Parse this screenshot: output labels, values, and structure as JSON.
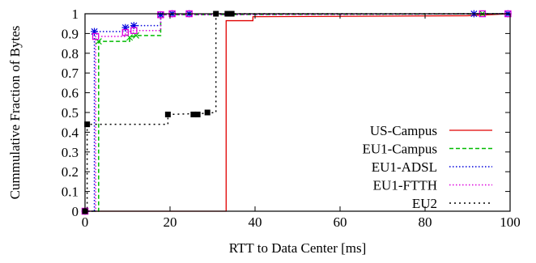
{
  "chart_data": {
    "type": "line",
    "title": "",
    "xlabel": "RTT to Data Center [ms]",
    "ylabel": "Cummulative Fraction of Bytes",
    "xlim": [
      0,
      100
    ],
    "ylim": [
      0,
      1
    ],
    "x_ticks": [
      0,
      20,
      40,
      60,
      80,
      100
    ],
    "y_ticks": [
      0,
      0.1,
      0.2,
      0.3,
      0.4,
      0.5,
      0.6,
      0.7,
      0.8,
      0.9,
      1
    ],
    "x_tick_labels": [
      "0",
      "20",
      "40",
      "60",
      "80",
      "100"
    ],
    "y_tick_labels": [
      "0",
      "0.1",
      "0.2",
      "0.3",
      "0.4",
      "0.5",
      "0.6",
      "0.7",
      "0.8",
      "0.9",
      "1"
    ],
    "grid": false,
    "legend_position": "bottom-right",
    "series": [
      {
        "name": "US-Campus",
        "color": "#e00000",
        "dash": "solid",
        "marker": "none",
        "points": [
          [
            0,
            0
          ],
          [
            33.2,
            0
          ],
          [
            33.2,
            0.965
          ],
          [
            39.5,
            0.965
          ],
          [
            39.5,
            0.985
          ],
          [
            90,
            0.99
          ],
          [
            100,
            1.0
          ]
        ]
      },
      {
        "name": "EU1-Campus",
        "color": "#00bb00",
        "dash": "dashed",
        "marker": "x",
        "points": [
          [
            0,
            0
          ],
          [
            3.2,
            0
          ],
          [
            3.2,
            0.86
          ],
          [
            10.5,
            0.86
          ],
          [
            10.5,
            0.88
          ],
          [
            12,
            0.89
          ],
          [
            17.8,
            0.89
          ],
          [
            17.8,
            0.995
          ],
          [
            100,
            1.0
          ]
        ]
      },
      {
        "name": "EU1-ADSL",
        "color": "#0000dd",
        "dash": "dotted",
        "marker": "star",
        "points": [
          [
            0,
            0
          ],
          [
            2.2,
            0
          ],
          [
            2.2,
            0.91
          ],
          [
            9.5,
            0.91
          ],
          [
            9.5,
            0.93
          ],
          [
            11.5,
            0.94
          ],
          [
            17.8,
            0.94
          ],
          [
            17.8,
            0.995
          ],
          [
            100,
            1.0
          ]
        ]
      },
      {
        "name": "EU1-FTTH",
        "color": "#dd00dd",
        "dash": "dotted",
        "marker": "square",
        "points": [
          [
            0,
            0
          ],
          [
            2.5,
            0
          ],
          [
            2.5,
            0.885
          ],
          [
            9.5,
            0.885
          ],
          [
            9.5,
            0.905
          ],
          [
            11.5,
            0.915
          ],
          [
            17.8,
            0.915
          ],
          [
            17.8,
            0.995
          ],
          [
            100,
            1.0
          ]
        ]
      },
      {
        "name": "EU2",
        "color": "#000000",
        "dash": "dashdot",
        "marker": "filled-square",
        "points": [
          [
            0,
            0
          ],
          [
            0.5,
            0
          ],
          [
            0.5,
            0.44
          ],
          [
            19.5,
            0.44
          ],
          [
            19.5,
            0.49
          ],
          [
            27.5,
            0.495
          ],
          [
            30.8,
            0.5
          ],
          [
            30.8,
            1.0
          ],
          [
            100,
            1.0
          ]
        ]
      }
    ],
    "markers": {
      "US-Campus": [],
      "EU1-Campus": [
        [
          3.2,
          0.86
        ],
        [
          10.5,
          0.88
        ],
        [
          12,
          0.89
        ],
        [
          17.8,
          0.995
        ],
        [
          20.5,
          1.0
        ],
        [
          24.5,
          1.0
        ],
        [
          93.5,
          1.0
        ],
        [
          99.5,
          1.0
        ]
      ],
      "EU1-ADSL": [
        [
          0,
          0
        ],
        [
          2.2,
          0.91
        ],
        [
          9.5,
          0.93
        ],
        [
          11.5,
          0.94
        ],
        [
          17.8,
          0.995
        ],
        [
          20.5,
          1.0
        ],
        [
          24.5,
          1.0
        ],
        [
          91.5,
          1.0
        ],
        [
          99.5,
          1.0
        ]
      ],
      "EU1-FTTH": [
        [
          0,
          0
        ],
        [
          2.5,
          0.885
        ],
        [
          9.5,
          0.905
        ],
        [
          11.5,
          0.915
        ],
        [
          17.8,
          0.995
        ],
        [
          20.5,
          1.0
        ],
        [
          24.5,
          1.0
        ],
        [
          93.5,
          1.0
        ],
        [
          99.5,
          1.0
        ]
      ],
      "EU2": [
        [
          0,
          0
        ],
        [
          0.5,
          0.44
        ],
        [
          19.5,
          0.49
        ],
        [
          25.5,
          0.49
        ],
        [
          26.5,
          0.49
        ],
        [
          28.8,
          0.5
        ],
        [
          30.8,
          1.0
        ],
        [
          33.5,
          1.0
        ],
        [
          34.5,
          1.0
        ]
      ]
    }
  }
}
